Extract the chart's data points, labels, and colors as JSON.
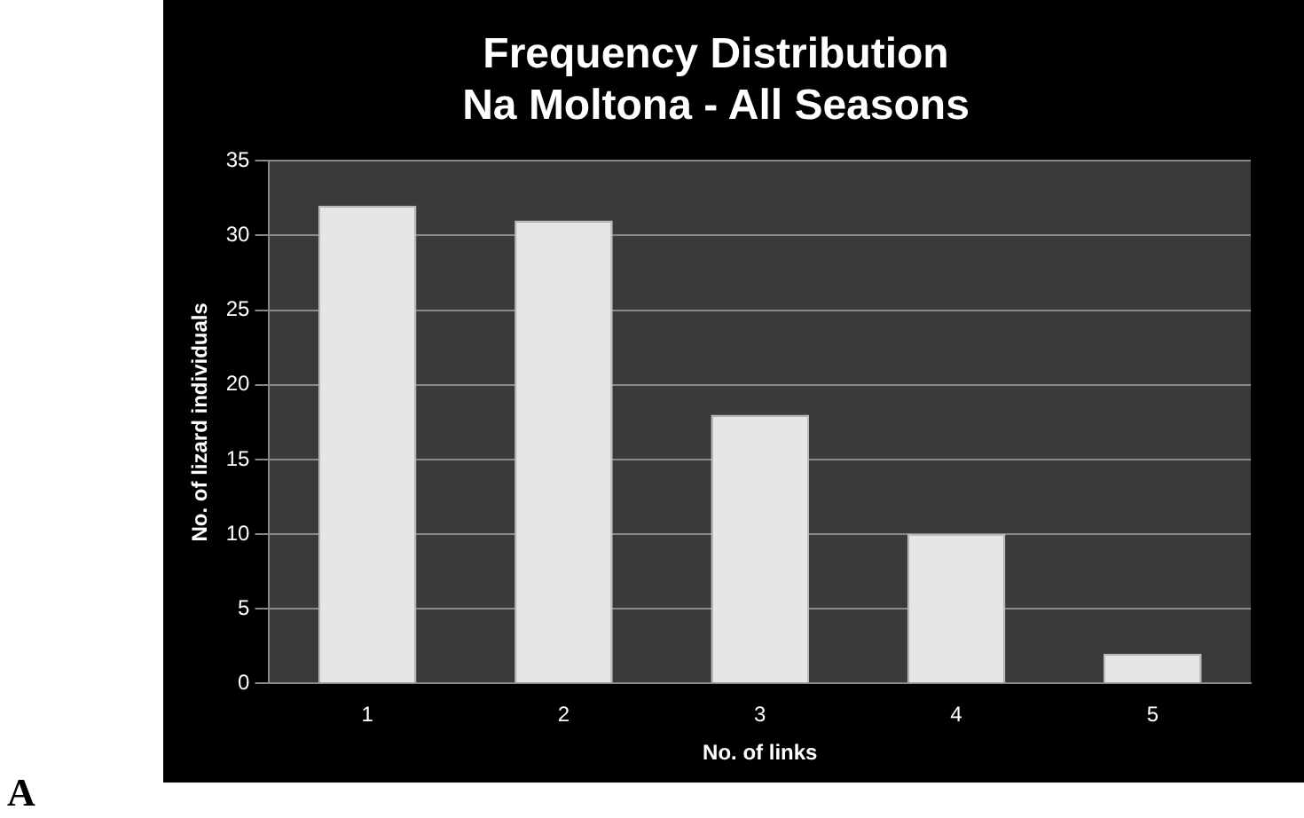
{
  "chart_data": {
    "type": "bar",
    "title": [
      "Frequency Distribution",
      "Na Moltona - All Seasons"
    ],
    "xlabel": "No. of links",
    "ylabel": "No. of lizard individuals",
    "categories": [
      "1",
      "2",
      "3",
      "4",
      "5"
    ],
    "values": [
      32,
      31,
      18,
      10,
      2
    ],
    "color": "#e6e6e6",
    "ylim": [
      0,
      35
    ],
    "yticks": [
      0,
      5,
      10,
      15,
      20,
      25,
      30,
      35
    ],
    "grid": "y",
    "legend": false,
    "annotations": [
      "A"
    ]
  }
}
